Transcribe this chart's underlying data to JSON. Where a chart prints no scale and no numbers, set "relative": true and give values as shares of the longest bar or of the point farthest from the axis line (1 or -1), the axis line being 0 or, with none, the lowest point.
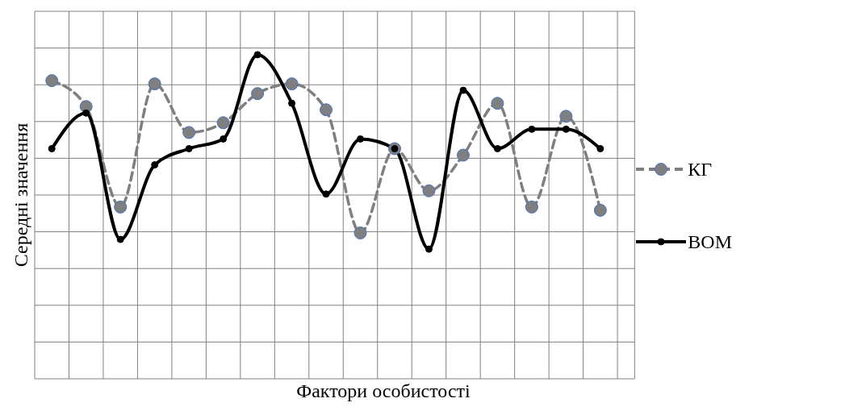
{
  "chart_data": {
    "type": "line",
    "relative": true,
    "xlabel": "Фактори особистості",
    "ylabel": "Середні значення",
    "categories": [
      null,
      null,
      null,
      null,
      null,
      null,
      null,
      null,
      null,
      null,
      null,
      null,
      null,
      null,
      null,
      null,
      null
    ],
    "series": [
      {
        "name": "КГ",
        "color": "#7f7f7f",
        "line_style": "dashed",
        "marker": "circle",
        "values": [
          0.92,
          0.84,
          0.53,
          0.91,
          0.76,
          0.79,
          0.88,
          0.91,
          0.83,
          0.45,
          0.71,
          0.58,
          0.69,
          0.85,
          0.53,
          0.81,
          0.52
        ]
      },
      {
        "name": "ВОМ",
        "color": "#000000",
        "line_style": "solid",
        "marker": "circle",
        "values": [
          0.71,
          0.82,
          0.43,
          0.66,
          0.71,
          0.74,
          1,
          0.85,
          0.57,
          0.74,
          0.71,
          0.4,
          0.89,
          0.71,
          0.77,
          0.77,
          0.71
        ]
      }
    ],
    "grid": true,
    "legend": "right"
  }
}
